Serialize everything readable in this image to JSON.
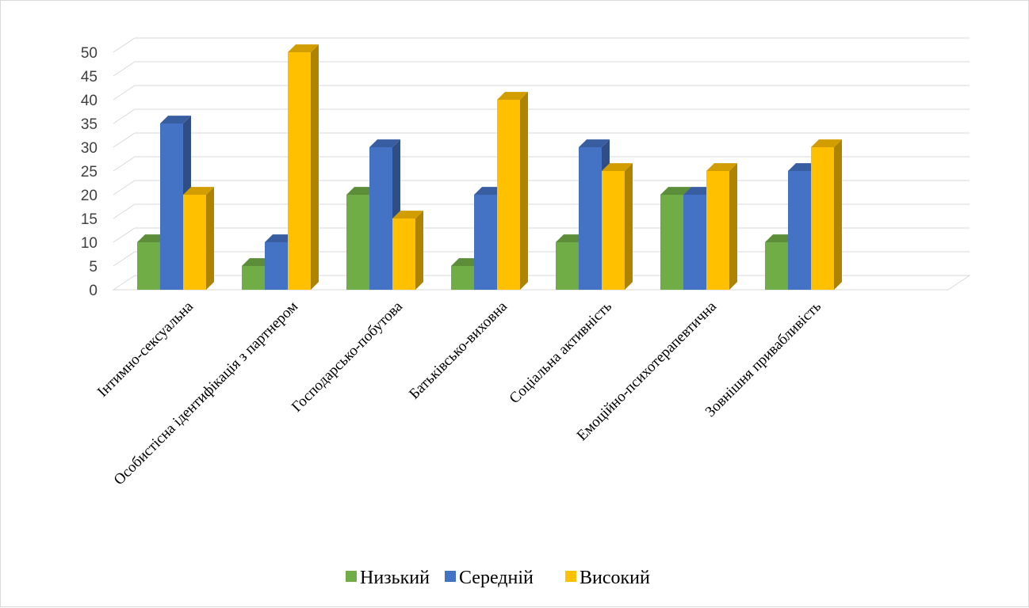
{
  "chart_data": {
    "type": "bar",
    "title": "",
    "xlabel": "",
    "ylabel": "",
    "ylim": [
      0,
      50
    ],
    "ytick_step": 5,
    "grid": true,
    "legend_placement": "bottom",
    "categories": [
      "Інтимно-сексуальна",
      "Особистісна ідентифікація з партнером",
      "Господарсько-побутова",
      "Батьківсько-виховна",
      "Соціальна активність",
      "Емоційно-психотерапевтична",
      "Зовнішня привабливість"
    ],
    "series": [
      {
        "name": "Низький",
        "color": "#70ad47",
        "values": [
          10,
          5,
          20,
          5,
          10,
          20,
          10
        ]
      },
      {
        "name": "Середній",
        "color": "#4472c4",
        "values": [
          35,
          10,
          30,
          20,
          30,
          20,
          25
        ]
      },
      {
        "name": "Високий",
        "color": "#ffc000",
        "values": [
          20,
          50,
          15,
          40,
          25,
          25,
          30
        ]
      }
    ]
  }
}
